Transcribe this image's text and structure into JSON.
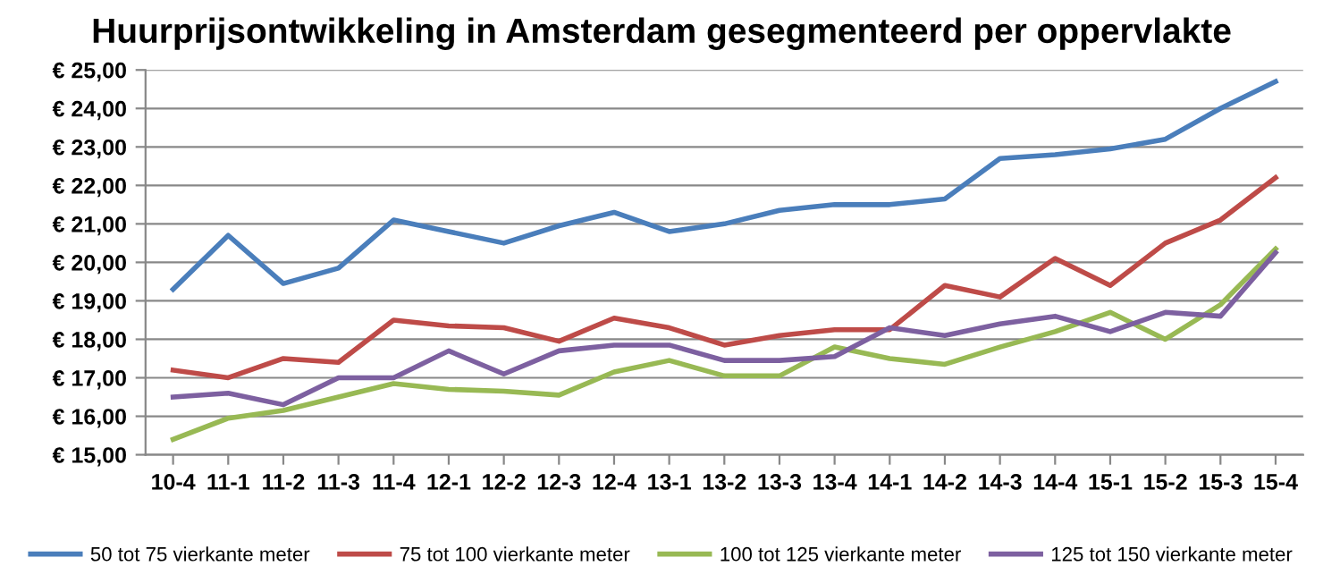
{
  "chart_data": {
    "type": "line",
    "title": "Huurprijsontwikkeling in Amsterdam gesegmenteerd per oppervlakte",
    "categories": [
      "10-4",
      "11-1",
      "11-2",
      "11-3",
      "11-4",
      "12-1",
      "12-2",
      "12-3",
      "12-4",
      "13-1",
      "13-2",
      "13-3",
      "13-4",
      "14-1",
      "14-2",
      "14-3",
      "14-4",
      "15-1",
      "15-2",
      "15-3",
      "15-4"
    ],
    "series": [
      {
        "name": "50 tot 75 vierkante meter",
        "color": "#4a7ebb",
        "values": [
          19.3,
          20.7,
          19.45,
          19.85,
          21.1,
          20.8,
          20.5,
          20.95,
          21.3,
          20.8,
          21.0,
          21.35,
          21.5,
          21.5,
          21.65,
          22.7,
          22.8,
          22.95,
          23.2,
          24.0,
          24.7
        ]
      },
      {
        "name": "75 tot 100 vierkante meter",
        "color": "#be4b48",
        "values": [
          17.2,
          17.0,
          17.5,
          17.4,
          18.5,
          18.35,
          18.3,
          17.95,
          18.55,
          18.3,
          17.85,
          18.1,
          18.25,
          18.25,
          19.4,
          19.1,
          20.1,
          19.4,
          20.5,
          21.1,
          22.2
        ]
      },
      {
        "name": "100 tot 125 vierkante meter",
        "color": "#98b954",
        "values": [
          15.4,
          15.95,
          16.15,
          16.5,
          16.85,
          16.7,
          16.65,
          16.55,
          17.15,
          17.45,
          17.05,
          17.05,
          17.8,
          17.5,
          17.35,
          17.8,
          18.2,
          18.7,
          18.0,
          18.9,
          20.35
        ]
      },
      {
        "name": "125 tot 150 vierkante meter",
        "color": "#7d60a0",
        "values": [
          16.5,
          16.6,
          16.3,
          17.0,
          17.0,
          17.7,
          17.1,
          17.7,
          17.85,
          17.85,
          17.45,
          17.45,
          17.55,
          18.3,
          18.1,
          18.4,
          18.6,
          18.2,
          18.7,
          18.6,
          20.25
        ]
      }
    ],
    "ylim": [
      15,
      25
    ],
    "yticks": [
      {
        "value": 15,
        "label": "€ 15,00"
      },
      {
        "value": 16,
        "label": "€ 16,00"
      },
      {
        "value": 17,
        "label": "€ 17,00"
      },
      {
        "value": 18,
        "label": "€ 18,00"
      },
      {
        "value": 19,
        "label": "€ 19,00"
      },
      {
        "value": 20,
        "label": "€ 20,00"
      },
      {
        "value": 21,
        "label": "€ 21,00"
      },
      {
        "value": 22,
        "label": "€ 22,00"
      },
      {
        "value": 23,
        "label": "€ 23,00"
      },
      {
        "value": 24,
        "label": "€ 24,00"
      },
      {
        "value": 25,
        "label": "€ 25,00"
      }
    ],
    "grid": "y",
    "legend": "bottom",
    "marker": "none",
    "line_style": "solid"
  }
}
